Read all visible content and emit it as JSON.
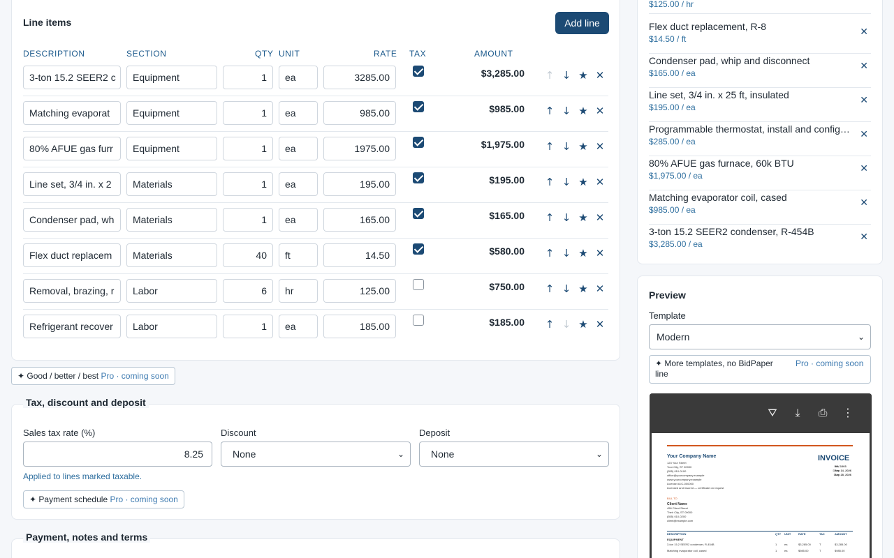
{
  "line_items": {
    "title": "Line items",
    "add_label": "Add line",
    "headers": {
      "description": "DESCRIPTION",
      "section": "SECTION",
      "qty": "QTY",
      "unit": "UNIT",
      "rate": "RATE",
      "tax": "TAX",
      "amount": "AMOUNT"
    },
    "rows": [
      {
        "description": "3-ton 15.2 SEER2 c",
        "section": "Equipment",
        "qty": "1",
        "unit": "ea",
        "rate": "3285.00",
        "tax": true,
        "amount": "$3,285.00"
      },
      {
        "description": "Matching evaporat",
        "section": "Equipment",
        "qty": "1",
        "unit": "ea",
        "rate": "985.00",
        "tax": true,
        "amount": "$985.00"
      },
      {
        "description": "80% AFUE gas furr",
        "section": "Equipment",
        "qty": "1",
        "unit": "ea",
        "rate": "1975.00",
        "tax": true,
        "amount": "$1,975.00"
      },
      {
        "description": "Line set, 3/4 in. x 2",
        "section": "Materials",
        "qty": "1",
        "unit": "ea",
        "rate": "195.00",
        "tax": true,
        "amount": "$195.00"
      },
      {
        "description": "Condenser pad, wh",
        "section": "Materials",
        "qty": "1",
        "unit": "ea",
        "rate": "165.00",
        "tax": true,
        "amount": "$165.00"
      },
      {
        "description": "Flex duct replacem",
        "section": "Materials",
        "qty": "40",
        "unit": "ft",
        "rate": "14.50",
        "tax": true,
        "amount": "$580.00"
      },
      {
        "description": "Removal, brazing, r",
        "section": "Labor",
        "qty": "6",
        "unit": "hr",
        "rate": "125.00",
        "tax": false,
        "amount": "$750.00"
      },
      {
        "description": "Refrigerant recover",
        "section": "Labor",
        "qty": "1",
        "unit": "ea",
        "rate": "185.00",
        "tax": false,
        "amount": "$185.00"
      }
    ],
    "icons": {
      "up": "arrow-up-icon",
      "down": "arrow-down-icon",
      "star": "star-icon",
      "remove": "close-icon"
    }
  },
  "gbb_chip": {
    "label": "✦ Good / better / best",
    "pro": "Pro · coming soon"
  },
  "tax_section": {
    "title": "Tax, discount and deposit",
    "tax_label": "Sales tax rate (%)",
    "tax_value": "8.25",
    "tax_hint": "Applied to lines marked taxable.",
    "discount_label": "Discount",
    "discount_value": "None",
    "deposit_label": "Deposit",
    "deposit_value": "None",
    "payment_chip": "✦ Payment schedule",
    "payment_pro": "Pro · coming soon"
  },
  "payment_section": {
    "title": "Payment, notes and terms"
  },
  "saved_items": {
    "partial_price": "$125.00 / hr",
    "items": [
      {
        "name": "Flex duct replacement, R-8",
        "price": "$14.50 / ft"
      },
      {
        "name": "Condenser pad, whip and disconnect",
        "price": "$165.00 / ea"
      },
      {
        "name": "Line set, 3/4 in. x 25 ft, insulated",
        "price": "$195.00 / ea"
      },
      {
        "name": "Programmable thermostat, install and configure",
        "price": "$285.00 / ea"
      },
      {
        "name": "80% AFUE gas furnace, 60k BTU",
        "price": "$1,975.00 / ea"
      },
      {
        "name": "Matching evaporator coil, cased",
        "price": "$985.00 / ea"
      },
      {
        "name": "3-ton 15.2 SEER2 condenser, R-454B",
        "price": "$3,285.00 / ea"
      }
    ]
  },
  "preview": {
    "title": "Preview",
    "template_label": "Template",
    "template_value": "Modern",
    "chip_label": "✦ More templates, no BidPaper line",
    "chip_pro": "Pro · coming soon",
    "invoice": {
      "company": "Your Company Name",
      "address": [
        "123 Your Street",
        "Your City, ST 00000",
        "(555) 010-0100",
        "office@yourcompany.example",
        "www.yourcompany.example",
        "License #LIC-000000",
        "Licensed and insured — certificate on request"
      ],
      "heading": "INVOICE",
      "meta": [
        [
          "No.",
          "INV-1003"
        ],
        [
          "Date",
          "Sep 14, 2026"
        ],
        [
          "Due",
          "Sep 28, 2026"
        ]
      ],
      "bill_to": "BILL TO",
      "client": [
        "Client Name",
        "456 Client Street",
        "Their City, ST 00000",
        "(555) 010-0200",
        "client@example.com"
      ],
      "cols": [
        "DESCRIPTION",
        "QTY",
        "UNIT",
        "RATE",
        "TAX",
        "AMOUNT"
      ],
      "section": "EQUIPMENT",
      "lines": [
        [
          "3-ton 15.2 SEER2 condenser, R-454B",
          "1",
          "ea",
          "$3,285.00",
          "T",
          "$3,285.00"
        ],
        [
          "Matching evaporator coil, cased",
          "1",
          "ea",
          "$985.00",
          "T",
          "$985.00"
        ]
      ]
    }
  }
}
